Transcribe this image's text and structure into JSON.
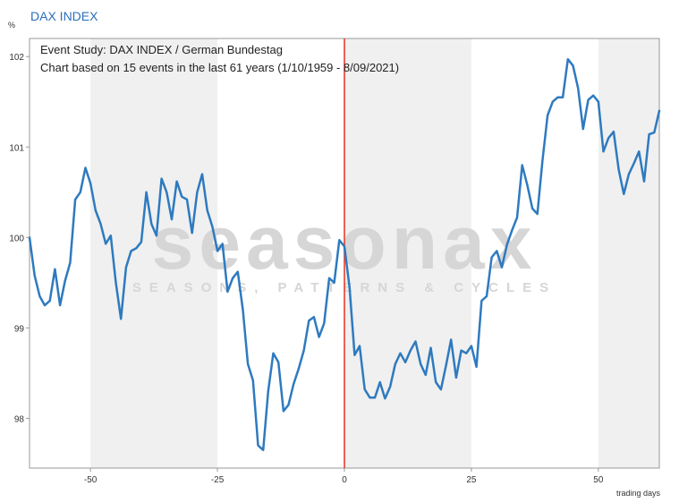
{
  "header": {
    "title": "DAX INDEX"
  },
  "chart_data": {
    "type": "line",
    "title": "Event Study: DAX INDEX / German Bundestag",
    "subtitle": "Chart based on 15 events in the last 61 years (1/10/1959 - 8/09/2021)",
    "ylabel": "%",
    "xlabel": "trading days",
    "xlim": [
      -62,
      62
    ],
    "ylim": [
      97.45,
      102.2
    ],
    "x_ticks": [
      -50,
      -25,
      0,
      25,
      50
    ],
    "y_ticks": [
      98,
      99,
      100,
      101,
      102
    ],
    "shaded_bands": [
      [
        -50,
        -25
      ],
      [
        0,
        25
      ],
      [
        50,
        62
      ]
    ],
    "event_line_x": 0,
    "watermark": {
      "brand": "seasonax",
      "tagline": "SEASONS, PATTERNS & CYCLES"
    },
    "colors": {
      "line": "#2e7abf",
      "event": "#e8321e",
      "band": "#f0f0f0",
      "title": "#2a6ebb"
    },
    "series": [
      {
        "x": [
          -62,
          -61,
          -60,
          -59,
          -58,
          -57,
          -56,
          -55,
          -54,
          -53,
          -52,
          -51,
          -50,
          -49,
          -48,
          -47,
          -46,
          -45,
          -44,
          -43,
          -42,
          -41,
          -40,
          -39,
          -38,
          -37,
          -36,
          -35,
          -34,
          -33,
          -32,
          -31,
          -30,
          -29,
          -28,
          -27,
          -26,
          -25,
          -24,
          -23,
          -22,
          -21,
          -20,
          -19,
          -18,
          -17,
          -16,
          -15,
          -14,
          -13,
          -12,
          -11,
          -10,
          -9,
          -8,
          -7,
          -6,
          -5,
          -4,
          -3,
          -2,
          -1,
          0,
          1,
          2,
          3,
          4,
          5,
          6,
          7,
          8,
          9,
          10,
          11,
          12,
          13,
          14,
          15,
          16,
          17,
          18,
          19,
          20,
          21,
          22,
          23,
          24,
          25,
          26,
          27,
          28,
          29,
          30,
          31,
          32,
          33,
          34,
          35,
          36,
          37,
          38,
          39,
          40,
          41,
          42,
          43,
          44,
          45,
          46,
          47,
          48,
          49,
          50,
          51,
          52,
          53,
          54,
          55,
          56,
          57,
          58,
          59,
          60,
          61,
          62
        ],
        "values": [
          100.0,
          99.58,
          99.35,
          99.25,
          99.3,
          99.65,
          99.25,
          99.52,
          99.72,
          100.42,
          100.5,
          100.77,
          100.6,
          100.3,
          100.15,
          99.93,
          100.02,
          99.5,
          99.1,
          99.67,
          99.85,
          99.88,
          99.95,
          100.5,
          100.15,
          100.02,
          100.65,
          100.5,
          100.2,
          100.62,
          100.45,
          100.42,
          100.05,
          100.5,
          100.7,
          100.3,
          100.12,
          99.85,
          99.93,
          99.4,
          99.55,
          99.62,
          99.2,
          98.6,
          98.42,
          97.7,
          97.65,
          98.3,
          98.72,
          98.62,
          98.08,
          98.15,
          98.38,
          98.55,
          98.75,
          99.08,
          99.12,
          98.9,
          99.05,
          99.55,
          99.5,
          99.97,
          99.9,
          99.45,
          98.7,
          98.8,
          98.32,
          98.23,
          98.23,
          98.4,
          98.22,
          98.35,
          98.6,
          98.72,
          98.62,
          98.75,
          98.85,
          98.6,
          98.48,
          98.78,
          98.4,
          98.32,
          98.58,
          98.87,
          98.45,
          98.75,
          98.72,
          98.8,
          98.57,
          99.3,
          99.35,
          99.78,
          99.85,
          99.67,
          99.92,
          100.08,
          100.22,
          100.8,
          100.58,
          100.32,
          100.26,
          100.85,
          101.35,
          101.5,
          101.55,
          101.55,
          101.97,
          101.9,
          101.65,
          101.2,
          101.52,
          101.57,
          101.5,
          100.95,
          101.1,
          101.17,
          100.75,
          100.48,
          100.7,
          100.82,
          100.95,
          100.62,
          101.14,
          101.16,
          101.4
        ]
      }
    ]
  }
}
